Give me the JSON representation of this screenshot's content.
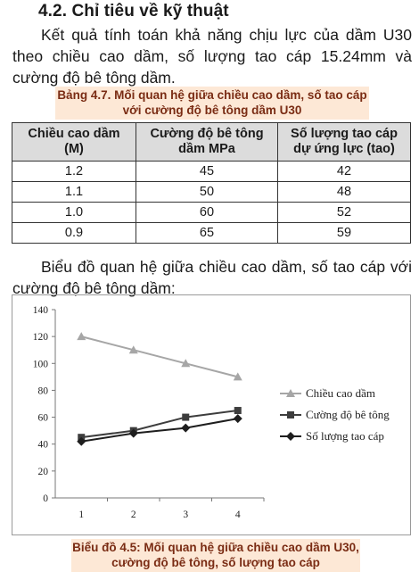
{
  "section": {
    "heading": "4.2. Chỉ tiêu về kỹ thuật"
  },
  "paragraphs": {
    "intro": "Kết quả tính toán khả năng chịu lực của dầm U30 theo chiều cao dầm, số lượng tao cáp 15.24mm và cường độ bê tông dầm.",
    "chart_intro": "Biểu đồ quan hệ giữa chiều cao dầm, số tao cáp với cường độ bê tông dầm:"
  },
  "table": {
    "caption_line1": "Bảng 4.7. Mối quan hệ giữa chiều cao dầm, số tao cáp",
    "caption_line2": "với cường độ bê tông dầm U30",
    "headers": [
      {
        "line1": "Chiều cao dầm",
        "line2": "(M)"
      },
      {
        "line1": "Cường độ bê tông",
        "line2": "dầm MPa"
      },
      {
        "line1": "Số lượng tao cáp",
        "line2": "dự ứng lực (tao)"
      }
    ],
    "rows": [
      [
        "1.2",
        "45",
        "42"
      ],
      [
        "1.1",
        "50",
        "48"
      ],
      [
        "1.0",
        "60",
        "52"
      ],
      [
        "0.9",
        "65",
        "59"
      ]
    ]
  },
  "chart_data": {
    "type": "line",
    "x": [
      "1",
      "2",
      "3",
      "4"
    ],
    "ylim": [
      0,
      140
    ],
    "yticks": [
      "0",
      "20",
      "40",
      "60",
      "80",
      "100",
      "120",
      "140"
    ],
    "grid": false,
    "legend_position": "right",
    "series": [
      {
        "name": "Chiều cao dầm",
        "values": [
          120,
          110,
          100,
          90
        ],
        "color": "#a6a6a6",
        "marker": "triangle"
      },
      {
        "name": "Cường độ bê tông",
        "values": [
          45,
          50,
          60,
          65
        ],
        "color": "#3d3d3d",
        "marker": "square"
      },
      {
        "name": "Số lượng tao cáp",
        "values": [
          42,
          48,
          52,
          59
        ],
        "color": "#1e1e1e",
        "marker": "diamond"
      }
    ],
    "caption_line1": "Biểu đồ 4.5: Mối quan hệ giữa chiều cao dầm U30,",
    "caption_line2": "cường độ bê tông, số lượng tao cáp"
  }
}
